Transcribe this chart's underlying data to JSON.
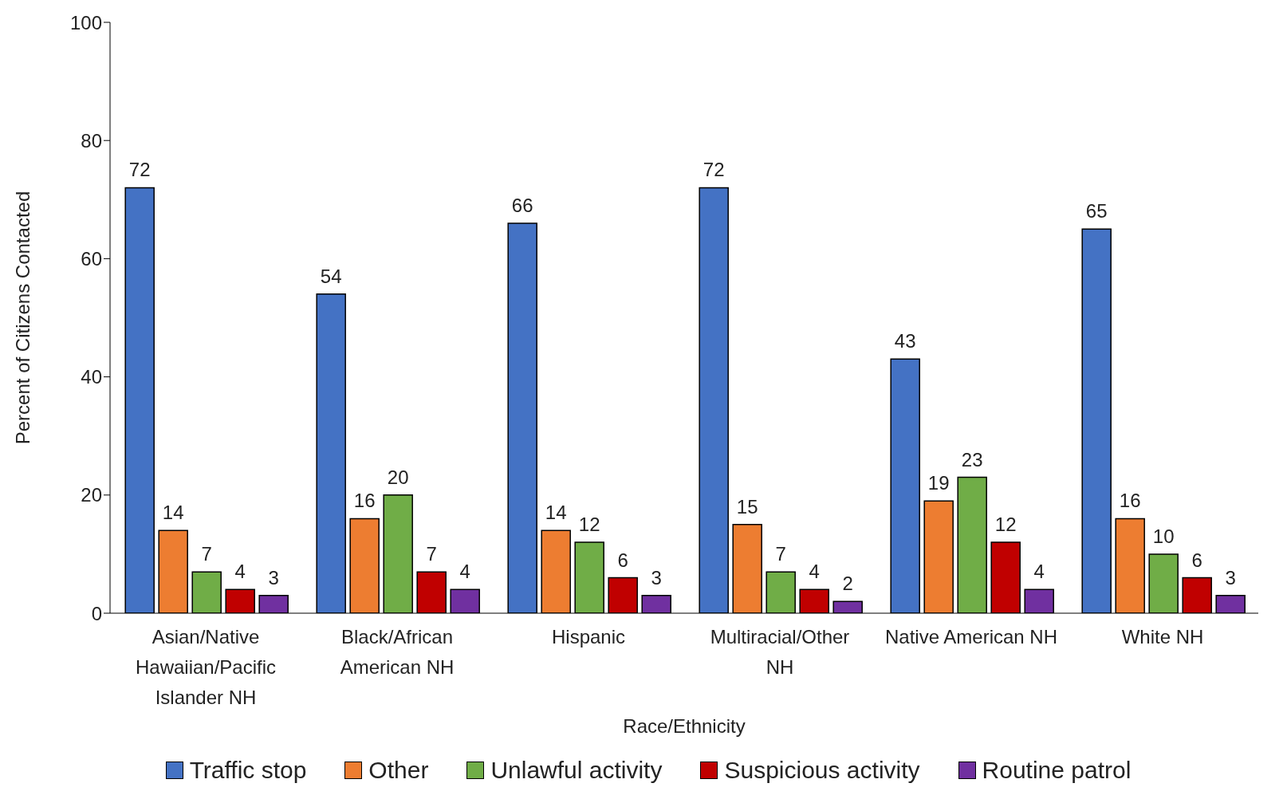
{
  "chart_data": {
    "type": "bar",
    "xlabel": "Race/Ethnicity",
    "ylabel": "Percent of Citizens Contacted",
    "categories": [
      "Asian/Native Hawaiian/Pacific Islander NH",
      "Black/African American NH",
      "Hispanic",
      "Multiracial/Other NH",
      "Native American NH",
      "White NH"
    ],
    "series": [
      {
        "name": "Traffic stop",
        "color": "#4472c4",
        "values": [
          72,
          54,
          66,
          72,
          43,
          65
        ]
      },
      {
        "name": "Other",
        "color": "#ed7d31",
        "values": [
          14,
          16,
          14,
          15,
          19,
          16
        ]
      },
      {
        "name": "Unlawful activity",
        "color": "#70ad47",
        "values": [
          7,
          20,
          12,
          7,
          23,
          10
        ]
      },
      {
        "name": "Suspicious activity",
        "color": "#c00000",
        "values": [
          4,
          7,
          6,
          4,
          12,
          6
        ]
      },
      {
        "name": "Routine patrol",
        "color": "#7030a0",
        "values": [
          3,
          4,
          3,
          2,
          4,
          3
        ]
      }
    ],
    "ylim": [
      0,
      100
    ],
    "yticks": [
      0,
      20,
      40,
      60,
      80,
      100
    ],
    "grid": false,
    "legend": "bottom",
    "data_labels": true
  }
}
